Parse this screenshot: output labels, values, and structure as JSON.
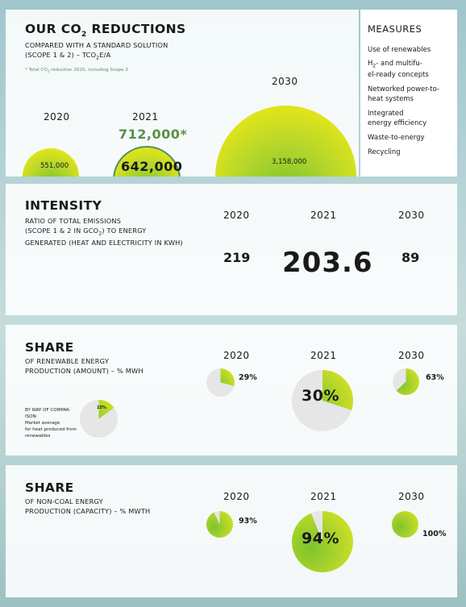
{
  "reductions": {
    "title_main": "OUR CO",
    "title_sub": "2",
    "title_end": " REDUCTIONS",
    "subtitle_line1": "COMPARED WITH A STANDARD SOLUTION",
    "subtitle_line2": "(SCOPE 1 & 2) – tCO",
    "subtitle_sub": "2",
    "subtitle_end": "e/a",
    "footnote": "* Total CO",
    "footnote_sub": "2",
    "footnote_end": " reduction 2020, including Scope 3",
    "years": [
      "2020",
      "2021",
      "2030"
    ],
    "values": [
      "551,000",
      "642,000",
      "3,158,000"
    ],
    "total_2021": "712,000*"
  },
  "measures": {
    "title": "MEASURES",
    "items": [
      {
        "line1": "Use of renewables",
        "line2": ""
      },
      {
        "line1": "H",
        "sub": "2",
        "rest": "- and multifu-",
        "line2": "el-ready concepts"
      },
      {
        "line1": "Networked power-to-",
        "line2": "heat systems"
      },
      {
        "line1": "Integrated",
        "line2": "energy efficiency"
      },
      {
        "line1": "Waste-to-energy",
        "line2": ""
      },
      {
        "line1": "Recycling",
        "line2": ""
      }
    ]
  },
  "intensity": {
    "title": "INTENSITY",
    "sub_line1": "RATIO OF TOTAL EMISSIONS",
    "sub_line2": "(SCOPE 1 & 2 IN gCO",
    "sub_line2_sub": "2",
    "sub_line2_end": ") TO ENERGY",
    "sub_line3": "GENERATED (HEAT AND ELECTRICITY IN kWh)",
    "years": [
      "2020",
      "2021",
      "2030"
    ],
    "values": [
      "219",
      "203.6",
      "89"
    ]
  },
  "renewable": {
    "title": "SHARE",
    "sub_line1": "OF RENEWABLE ENERGY",
    "sub_line2": "PRODUCTION (AMOUNT) – % MWh",
    "years": [
      "2020",
      "2021",
      "2030"
    ],
    "labels": [
      "29%",
      "30%",
      "63%"
    ],
    "shares": [
      0.29,
      0.3,
      0.63
    ],
    "comparison_lines": [
      "BY WAY OF COMPAR-",
      "ISON:",
      "Market average",
      "for heat produced from",
      "renewables"
    ],
    "comparison_label": "15%",
    "comparison_share": 0.15
  },
  "noncoal": {
    "title": "SHARE",
    "sub_line1": "OF NON-COAL ENERGY",
    "sub_line2": "PRODUCTION (CAPACITY) – % MWth",
    "years": [
      "2020",
      "2021",
      "2030"
    ],
    "labels": [
      "93%",
      "94%",
      "100%"
    ],
    "shares": [
      0.93,
      0.94,
      1.0
    ]
  },
  "colors": {
    "green_dark": "#7cc42e",
    "yellow": "#e6e61b",
    "pie_bg": "#e6e6e6",
    "accent_green": "#5a8f47"
  }
}
